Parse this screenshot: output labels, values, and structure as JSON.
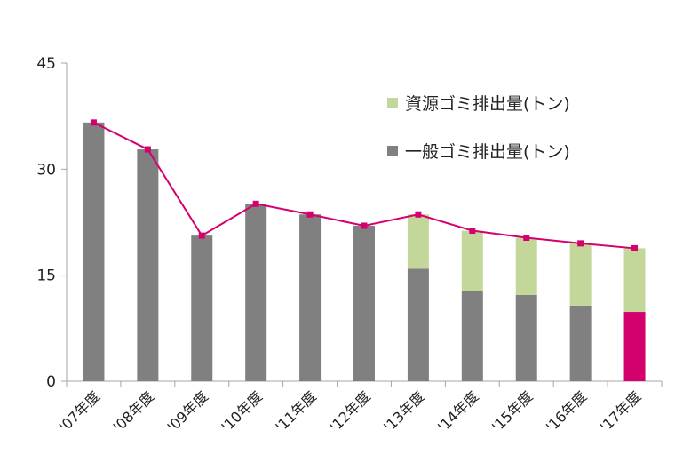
{
  "chart_data": {
    "type": "bar",
    "stacked": true,
    "categories": [
      "'07年度",
      "'08年度",
      "'09年度",
      "'10年度",
      "'11年度",
      "'12年度",
      "'13年度",
      "'14年度",
      "'15年度",
      "'16年度",
      "'17年度"
    ],
    "series": [
      {
        "name": "一般ゴミ排出量(トン)",
        "values": [
          36.6,
          32.8,
          20.6,
          25.1,
          23.6,
          22.0,
          15.9,
          12.8,
          12.2,
          10.7,
          9.8
        ],
        "color": "#808080",
        "highlight": {
          "index": 10,
          "color": "#d4006e"
        }
      },
      {
        "name": "資源ゴミ排出量(トン)",
        "values": [
          0,
          0,
          0,
          0,
          0,
          0,
          7.7,
          8.5,
          8.1,
          8.8,
          9.0
        ],
        "color": "#c4d79b"
      }
    ],
    "total_line": {
      "values": [
        36.6,
        32.8,
        20.6,
        25.1,
        23.6,
        22.0,
        23.6,
        21.3,
        20.3,
        19.5,
        18.8
      ],
      "color": "#d4006e"
    },
    "ylim": [
      0,
      45
    ],
    "yticks": [
      "0",
      "15",
      "30",
      "45"
    ],
    "grid": false,
    "legend_position": "top-right"
  }
}
